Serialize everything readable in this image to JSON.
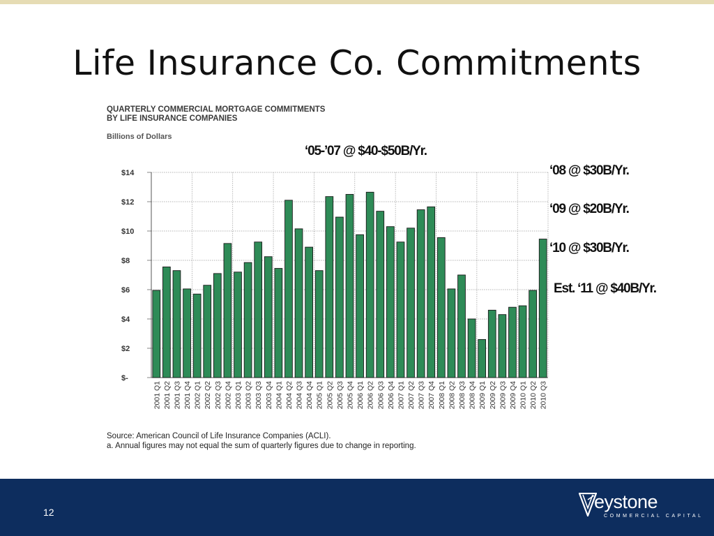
{
  "slide": {
    "title": "Life Insurance Co. Commitments",
    "page_number": "12"
  },
  "annotations": {
    "a0507": "‘05-’07 @ $40-$50B/Yr.",
    "a08": "‘08 @ $30B/Yr.",
    "a09": "‘09 @ $20B/Yr.",
    "a10": "‘10 @ $30B/Yr.",
    "a11": "Est. ‘11 @ $40B/Yr."
  },
  "source": {
    "line1": "Source: American Council of Life Insurance Companies (ACLI).",
    "line2": "a. Annual figures may not equal the sum of quarterly figures due to change in reporting."
  },
  "logo": {
    "word": "eystone",
    "sub": "COMMERCIAL CAPITAL"
  },
  "colors": {
    "bar": "#2e8b57",
    "footer": "#0d2d5e",
    "top_band": "#e6dcb4"
  },
  "chart_data": {
    "type": "bar",
    "title": "QUARTERLY COMMERCIAL MORTGAGE COMMITMENTS BY LIFE INSURANCE COMPANIES",
    "title_lines": [
      "QUARTERLY COMMERCIAL MORTGAGE COMMITMENTS",
      "BY LIFE INSURANCE COMPANIES"
    ],
    "unit_label": "Billions of Dollars",
    "ylim": [
      0,
      14
    ],
    "y_ticks": [
      {
        "value": 0,
        "label": "$-"
      },
      {
        "value": 2,
        "label": "$2"
      },
      {
        "value": 4,
        "label": "$4"
      },
      {
        "value": 6,
        "label": "$6"
      },
      {
        "value": 8,
        "label": "$8"
      },
      {
        "value": 10,
        "label": "$10"
      },
      {
        "value": 12,
        "label": "$12"
      },
      {
        "value": 14,
        "label": "$14"
      }
    ],
    "grid": true,
    "categories": [
      "2001 Q1",
      "2001 Q2",
      "2001 Q3",
      "2001 Q4",
      "2002 Q1",
      "2002 Q2",
      "2002 Q3",
      "2002 Q4",
      "2003 Q1",
      "2003 Q2",
      "2003 Q3",
      "2003 Q4",
      "2004 Q1",
      "2004 Q2",
      "2004 Q3",
      "2004 Q4",
      "2005 Q1",
      "2005 Q2",
      "2005 Q3",
      "2005 Q4",
      "2006 Q1",
      "2006 Q2",
      "2006 Q3",
      "2006 Q4",
      "2007 Q1",
      "2007 Q2",
      "2007 Q3",
      "2007 Q4",
      "2008 Q1",
      "2008 Q2",
      "2008 Q3",
      "2008 Q4",
      "2009 Q1",
      "2009 Q2",
      "2009 Q3",
      "2009 Q4",
      "2010 Q1",
      "2010 Q2",
      "2010 Q3"
    ],
    "values": [
      5.95,
      7.55,
      7.3,
      6.05,
      5.7,
      6.3,
      7.1,
      9.15,
      7.2,
      7.85,
      9.25,
      8.25,
      7.45,
      12.1,
      10.15,
      8.9,
      7.3,
      12.35,
      10.95,
      12.5,
      9.75,
      12.65,
      11.35,
      10.3,
      9.25,
      10.2,
      11.45,
      11.65,
      9.55,
      6.05,
      7.0,
      4.0,
      2.6,
      4.6,
      4.3,
      4.8,
      4.9,
      5.95,
      9.45
    ]
  }
}
